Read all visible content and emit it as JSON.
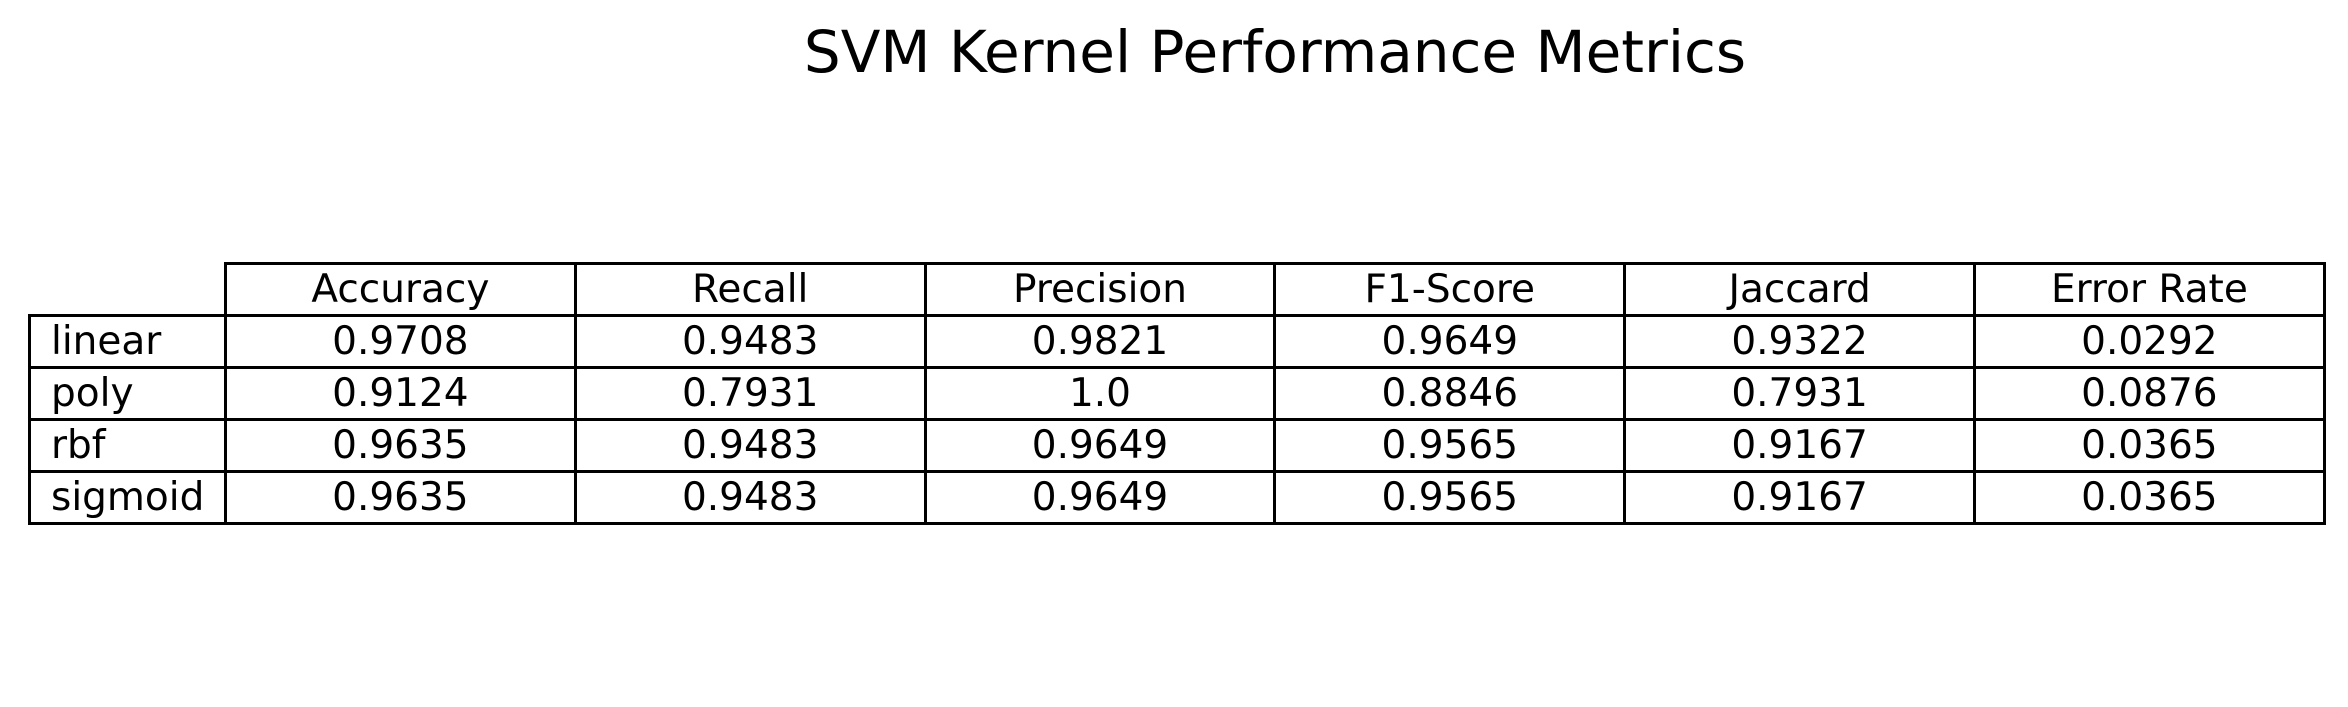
{
  "figure": {
    "title": "SVM Kernel Performance Metrics"
  },
  "chart_data": {
    "type": "table",
    "title": "SVM Kernel Performance Metrics",
    "columns": [
      "Accuracy",
      "Recall",
      "Precision",
      "F1-Score",
      "Jaccard",
      "Error Rate"
    ],
    "rows": [
      {
        "label": "linear",
        "values": [
          "0.9708",
          "0.9483",
          "0.9821",
          "0.9649",
          "0.9322",
          "0.0292"
        ]
      },
      {
        "label": "poly",
        "values": [
          "0.9124",
          "0.7931",
          "1.0",
          "0.8846",
          "0.7931",
          "0.0876"
        ]
      },
      {
        "label": "rbf",
        "values": [
          "0.9635",
          "0.9483",
          "0.9649",
          "0.9565",
          "0.9167",
          "0.0365"
        ]
      },
      {
        "label": "sigmoid",
        "values": [
          "0.9635",
          "0.9483",
          "0.9649",
          "0.9565",
          "0.9167",
          "0.0365"
        ]
      }
    ]
  }
}
